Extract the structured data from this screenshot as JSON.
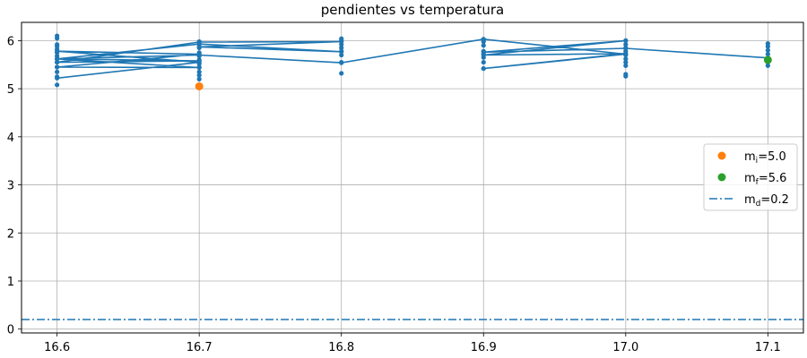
{
  "chart_data": {
    "type": "line",
    "title": "pendientes vs temperatura",
    "xlabel": "",
    "ylabel": "",
    "xlim": [
      16.575,
      17.125
    ],
    "ylim": [
      -0.08,
      6.38
    ],
    "xticks": [
      "16.6",
      "16.7",
      "16.8",
      "16.9",
      "17.0",
      "17.1"
    ],
    "yticks": [
      "0",
      "1",
      "2",
      "3",
      "4",
      "5",
      "6"
    ],
    "grid": true,
    "legend_position": "right",
    "series": [
      {
        "name": "",
        "color": "#1f77b4",
        "x": [
          16.6,
          16.7,
          16.6,
          16.7,
          16.6,
          16.7,
          16.6,
          16.7,
          16.6,
          16.7,
          16.8,
          16.7,
          16.8,
          16.7,
          16.6,
          16.7,
          16.8,
          16.9,
          17.0,
          16.9,
          17.0,
          16.9,
          17.0,
          16.9,
          17.0,
          17.1
        ],
        "y": [
          5.22,
          5.55,
          5.78,
          5.72,
          5.45,
          5.44,
          5.62,
          5.58,
          5.55,
          5.97,
          5.98,
          5.87,
          5.77,
          5.93,
          5.62,
          5.7,
          5.54,
          6.03,
          5.72,
          5.42,
          5.73,
          5.7,
          6.0,
          5.76,
          5.84,
          5.64
        ]
      }
    ],
    "vertical_points": [
      {
        "x": 16.6,
        "y": [
          5.08,
          5.25,
          5.35,
          5.45,
          5.55,
          5.62,
          5.68,
          5.75,
          5.82,
          5.88,
          5.92,
          6.05,
          6.1
        ]
      },
      {
        "x": 16.7,
        "y": [
          5.2,
          5.28,
          5.35,
          5.45,
          5.52,
          5.6,
          5.68,
          5.75,
          5.85,
          5.92,
          5.98
        ]
      },
      {
        "x": 16.8,
        "y": [
          5.32,
          5.55,
          5.7,
          5.78,
          5.85,
          5.92,
          6.0,
          6.04
        ]
      },
      {
        "x": 16.9,
        "y": [
          5.42,
          5.55,
          5.65,
          5.72,
          5.78,
          5.9,
          5.98,
          6.03
        ]
      },
      {
        "x": 17.0,
        "y": [
          5.26,
          5.3,
          5.48,
          5.55,
          5.62,
          5.7,
          5.78,
          5.85,
          5.92,
          6.0
        ]
      },
      {
        "x": 17.1,
        "y": [
          5.48,
          5.55,
          5.64,
          5.72,
          5.8,
          5.88,
          5.94
        ]
      }
    ],
    "markers": [
      {
        "name": "m$_i$=5.0",
        "x": 16.7,
        "y": 5.05,
        "color": "#ff7f0e"
      },
      {
        "name": "m$_f$=5.6",
        "x": 17.1,
        "y": 5.6,
        "color": "#2ca02c"
      }
    ],
    "hline": {
      "name": "m$_d$=0.2",
      "y": 0.2,
      "color": "#1f77b4",
      "style": "dashdot"
    },
    "legend": [
      {
        "kind": "dot",
        "label_main": "m",
        "label_sub": "i",
        "label_rest": "=5.0",
        "color": "#ff7f0e"
      },
      {
        "kind": "dot",
        "label_main": "m",
        "label_sub": "f",
        "label_rest": "=5.6",
        "color": "#2ca02c"
      },
      {
        "kind": "dashdot",
        "label_main": "m",
        "label_sub": "d",
        "label_rest": "=0.2",
        "color": "#1f77b4"
      }
    ],
    "colors": {
      "grid": "#b0b0b0",
      "axis": "#000000",
      "legend_border": "#cccccc"
    }
  }
}
